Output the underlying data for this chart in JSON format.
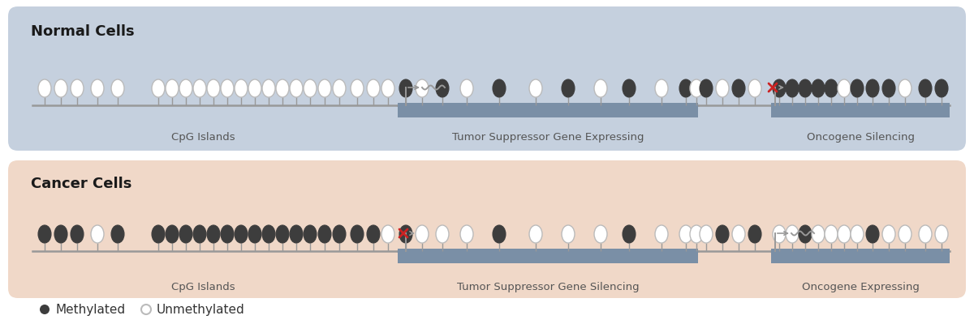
{
  "normal_bg": "#c5d0de",
  "cancer_bg": "#f0d8c8",
  "gene_bar_color": "#7a8fa6",
  "stem_color": "#999999",
  "methylated_color": "#3d3d3d",
  "unmethylated_fill": "#ffffff",
  "unmethylated_edge": "#bbbbbb",
  "arrow_color": "#999999",
  "x_color": "#cc2222",
  "normal_title": "Normal Cells",
  "cancer_title": "Cancer Cells",
  "normal_region1_label": "CpG Islands",
  "normal_region2_label": "Tumor Suppressor Gene Expressing",
  "normal_region3_label": "Oncogene Silencing",
  "cancer_region1_label": "CpG Islands",
  "cancer_region2_label": "Tumor Suppressor Gene Silencing",
  "cancer_region3_label": "Oncogene Expressing",
  "legend_methylated": "Methylated",
  "legend_unmethylated": "Unmethylated",
  "fig_bg": "#ffffff",
  "label_color": "#555555",
  "title_color": "#1a1a1a"
}
